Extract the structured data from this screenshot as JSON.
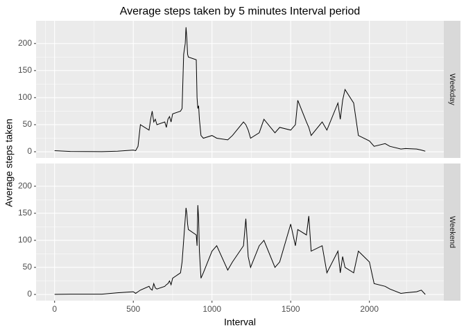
{
  "chart_data": {
    "type": "line",
    "title": "Average steps taken by 5 minutes Interval period",
    "x_label": "Interval",
    "y_label": "Average steps taken",
    "facet": "rows",
    "grid": true,
    "xlim": [
      -117.75,
      2472.75
    ],
    "ylim": [
      -11.5,
      242
    ],
    "xticks": [
      0,
      500,
      1000,
      1500,
      2000
    ],
    "yticks": [
      0,
      50,
      100,
      150,
      200
    ],
    "x": [
      0,
      100,
      200,
      300,
      400,
      500,
      515,
      530,
      545,
      600,
      610,
      620,
      630,
      640,
      650,
      700,
      710,
      720,
      730,
      740,
      750,
      800,
      810,
      820,
      830,
      835,
      840,
      845,
      850,
      900,
      905,
      910,
      915,
      920,
      930,
      945,
      1000,
      1030,
      1100,
      1130,
      1200,
      1215,
      1230,
      1245,
      1300,
      1330,
      1400,
      1430,
      1500,
      1530,
      1545,
      1600,
      1615,
      1630,
      1700,
      1730,
      1800,
      1815,
      1830,
      1845,
      1900,
      1915,
      1930,
      2000,
      2030,
      2100,
      2130,
      2200,
      2230,
      2300,
      2330,
      2355
    ],
    "series": [
      {
        "name": "Weekday",
        "color": "#000000",
        "values": [
          2,
          0.5,
          0.3,
          0.2,
          1,
          3,
          2,
          10,
          50,
          40,
          60,
          75,
          55,
          60,
          50,
          55,
          45,
          60,
          65,
          55,
          70,
          75,
          80,
          180,
          200,
          230,
          210,
          180,
          175,
          170,
          100,
          80,
          85,
          60,
          30,
          25,
          30,
          25,
          22,
          30,
          55,
          50,
          40,
          25,
          35,
          60,
          35,
          45,
          40,
          50,
          95,
          55,
          45,
          30,
          55,
          40,
          90,
          60,
          95,
          115,
          90,
          60,
          30,
          20,
          10,
          15,
          10,
          5,
          6,
          5,
          3,
          1
        ]
      },
      {
        "name": "Weekend",
        "color": "#000000",
        "values": [
          0.2,
          0.5,
          0.5,
          0.5,
          3,
          5,
          2,
          5,
          8,
          15,
          10,
          8,
          20,
          12,
          10,
          15,
          18,
          20,
          25,
          18,
          30,
          40,
          60,
          100,
          140,
          160,
          150,
          130,
          120,
          110,
          90,
          165,
          140,
          80,
          30,
          40,
          80,
          90,
          45,
          60,
          90,
          140,
          70,
          50,
          90,
          100,
          50,
          60,
          130,
          90,
          120,
          110,
          145,
          80,
          90,
          40,
          80,
          40,
          70,
          50,
          40,
          60,
          80,
          60,
          20,
          15,
          10,
          2,
          3,
          5,
          8,
          0
        ]
      }
    ]
  }
}
